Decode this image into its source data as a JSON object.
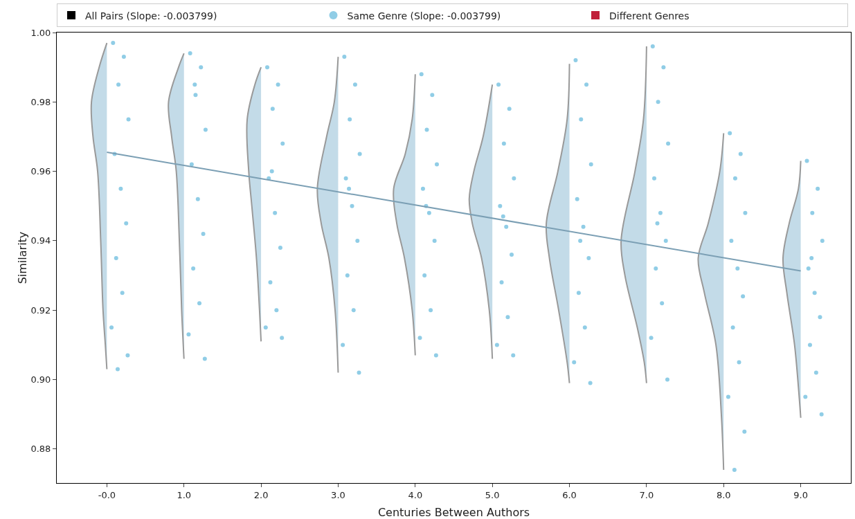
{
  "chart_data": {
    "type": "scatter",
    "xlabel": "Centuries Between Authors",
    "ylabel": "Similarity",
    "xlim": [
      -0.65,
      9.65
    ],
    "ylim": [
      0.8702,
      1.0
    ],
    "xticks": [
      {
        "value": 0,
        "label": "-0.0"
      },
      {
        "value": 1,
        "label": "1.0"
      },
      {
        "value": 2,
        "label": "2.0"
      },
      {
        "value": 3,
        "label": "3.0"
      },
      {
        "value": 4,
        "label": "4.0"
      },
      {
        "value": 5,
        "label": "5.0"
      },
      {
        "value": 6,
        "label": "6.0"
      },
      {
        "value": 7,
        "label": "7.0"
      },
      {
        "value": 8,
        "label": "8.0"
      },
      {
        "value": 9,
        "label": "9.0"
      }
    ],
    "yticks": [
      {
        "value": 0.88,
        "label": "0.88"
      },
      {
        "value": 0.9,
        "label": "0.90"
      },
      {
        "value": 0.92,
        "label": "0.92"
      },
      {
        "value": 0.94,
        "label": "0.94"
      },
      {
        "value": 0.96,
        "label": "0.96"
      },
      {
        "value": 0.98,
        "label": "0.98"
      },
      {
        "value": 1.0,
        "label": "1.00"
      }
    ],
    "grid": false,
    "legend": "top",
    "series": [
      {
        "type": "area",
        "color": "#c3dbe8",
        "x": [
          0,
          -0.1,
          -0.2,
          -0.18,
          -0.12,
          -0.08,
          -0.05,
          -0.02,
          0
        ],
        "values": [
          0.997,
          0.99,
          0.98,
          0.97,
          0.96,
          0.94,
          0.92,
          0.91,
          0.903
        ]
      },
      {
        "type": "area",
        "color": "#c3dbe8",
        "x": [
          1,
          0.93,
          0.8,
          0.84,
          0.9,
          0.94,
          0.97,
          1
        ],
        "values": [
          0.994,
          0.99,
          0.98,
          0.97,
          0.96,
          0.94,
          0.92,
          0.906
        ]
      },
      {
        "type": "area",
        "color": "#c3dbe8",
        "x": [
          2,
          1.92,
          1.82,
          1.84,
          1.88,
          1.94,
          1.98,
          2
        ],
        "values": [
          0.99,
          0.985,
          0.975,
          0.96,
          0.95,
          0.935,
          0.92,
          0.911
        ]
      },
      {
        "type": "area",
        "color": "#c3dbe8",
        "x": [
          3,
          2.95,
          2.85,
          2.73,
          2.78,
          2.88,
          2.96,
          3
        ],
        "values": [
          0.993,
          0.98,
          0.97,
          0.955,
          0.945,
          0.935,
          0.92,
          0.902
        ]
      },
      {
        "type": "area",
        "color": "#c3dbe8",
        "x": [
          4,
          3.96,
          3.87,
          3.72,
          3.76,
          3.86,
          3.96,
          4
        ],
        "values": [
          0.988,
          0.975,
          0.965,
          0.955,
          0.945,
          0.935,
          0.92,
          0.907
        ]
      },
      {
        "type": "area",
        "color": "#c3dbe8",
        "x": [
          5,
          4.88,
          4.76,
          4.7,
          4.74,
          4.86,
          4.96,
          5
        ],
        "values": [
          0.985,
          0.97,
          0.96,
          0.952,
          0.945,
          0.935,
          0.92,
          0.906
        ]
      },
      {
        "type": "area",
        "color": "#c3dbe8",
        "x": [
          6,
          5.97,
          5.85,
          5.7,
          5.74,
          5.86,
          5.97,
          6
        ],
        "values": [
          0.991,
          0.975,
          0.96,
          0.945,
          0.935,
          0.92,
          0.905,
          0.899
        ]
      },
      {
        "type": "area",
        "color": "#c3dbe8",
        "x": [
          7,
          6.96,
          6.85,
          6.67,
          6.72,
          6.88,
          6.97,
          7
        ],
        "values": [
          0.996,
          0.975,
          0.96,
          0.94,
          0.93,
          0.915,
          0.905,
          0.899
        ]
      },
      {
        "type": "area",
        "color": "#c3dbe8",
        "x": [
          8,
          7.95,
          7.8,
          7.67,
          7.75,
          7.9,
          7.97,
          8
        ],
        "values": [
          0.971,
          0.96,
          0.945,
          0.935,
          0.925,
          0.91,
          0.89,
          0.874
        ]
      },
      {
        "type": "area",
        "color": "#c3dbe8",
        "x": [
          9,
          8.97,
          8.85,
          8.77,
          8.82,
          8.92,
          8.98,
          9
        ],
        "values": [
          0.963,
          0.955,
          0.945,
          0.935,
          0.925,
          0.91,
          0.895,
          0.889
        ]
      },
      {
        "type": "bar",
        "name": "All Pairs (Slope: -0.003799)",
        "color": "#000000",
        "values": [
          null
        ]
      },
      {
        "name": "Same Genre (Slope: -0.003799)",
        "color": "#90cde6",
        "marker": "circle",
        "x": [
          0.08,
          0.22,
          0.15,
          0.28,
          0.1,
          0.18,
          0.25,
          0.12,
          0.2,
          0.06,
          0.27,
          0.14,
          1.08,
          1.22,
          1.15,
          1.28,
          1.1,
          1.18,
          1.25,
          1.12,
          1.2,
          1.06,
          1.27,
          1.14,
          2.08,
          2.22,
          2.15,
          2.28,
          2.1,
          2.18,
          2.25,
          2.12,
          2.2,
          2.06,
          2.27,
          2.14,
          3.08,
          3.22,
          3.15,
          3.28,
          3.1,
          3.18,
          3.25,
          3.12,
          3.2,
          3.06,
          3.27,
          3.14,
          4.08,
          4.22,
          4.15,
          4.28,
          4.1,
          4.18,
          4.25,
          4.12,
          4.2,
          4.06,
          4.27,
          4.14,
          5.08,
          5.22,
          5.15,
          5.28,
          5.1,
          5.18,
          5.25,
          5.12,
          5.2,
          5.06,
          5.27,
          5.14,
          6.08,
          6.22,
          6.15,
          6.28,
          6.1,
          6.18,
          6.25,
          6.12,
          6.2,
          6.06,
          6.27,
          6.14,
          7.08,
          7.22,
          7.15,
          7.28,
          7.1,
          7.18,
          7.25,
          7.12,
          7.2,
          7.06,
          7.27,
          7.14,
          8.08,
          8.22,
          8.15,
          8.28,
          8.1,
          8.18,
          8.25,
          8.12,
          8.2,
          8.06,
          8.27,
          8.14,
          9.08,
          9.22,
          9.15,
          9.28,
          9.1,
          9.18,
          9.25,
          9.12,
          9.2,
          9.06,
          9.27,
          9.14
        ],
        "values": [
          0.997,
          0.993,
          0.985,
          0.975,
          0.965,
          0.955,
          0.945,
          0.935,
          0.925,
          0.915,
          0.907,
          0.903,
          0.994,
          0.99,
          0.982,
          0.972,
          0.962,
          0.952,
          0.942,
          0.932,
          0.922,
          0.913,
          0.906,
          0.985,
          0.99,
          0.985,
          0.978,
          0.968,
          0.958,
          0.948,
          0.938,
          0.928,
          0.92,
          0.915,
          0.912,
          0.96,
          0.993,
          0.985,
          0.975,
          0.965,
          0.958,
          0.95,
          0.94,
          0.93,
          0.92,
          0.91,
          0.902,
          0.955,
          0.988,
          0.982,
          0.972,
          0.962,
          0.955,
          0.948,
          0.94,
          0.93,
          0.92,
          0.912,
          0.907,
          0.95,
          0.985,
          0.978,
          0.968,
          0.958,
          0.95,
          0.944,
          0.936,
          0.928,
          0.918,
          0.91,
          0.907,
          0.947,
          0.992,
          0.985,
          0.975,
          0.962,
          0.952,
          0.944,
          0.935,
          0.925,
          0.915,
          0.905,
          0.899,
          0.94,
          0.996,
          0.99,
          0.98,
          0.968,
          0.958,
          0.948,
          0.94,
          0.932,
          0.922,
          0.912,
          0.9,
          0.945,
          0.971,
          0.965,
          0.958,
          0.948,
          0.94,
          0.932,
          0.924,
          0.915,
          0.905,
          0.895,
          0.885,
          0.874,
          0.963,
          0.955,
          0.948,
          0.94,
          0.932,
          0.925,
          0.918,
          0.91,
          0.902,
          0.895,
          0.89,
          0.935
        ]
      },
      {
        "type": "bar",
        "name": "Different Genres",
        "color": "#c0203a",
        "values": [
          null
        ]
      },
      {
        "type": "line",
        "color": "#7b9fb4",
        "x": [
          0,
          9
        ],
        "values": [
          0.9655,
          0.9313
        ]
      }
    ]
  }
}
